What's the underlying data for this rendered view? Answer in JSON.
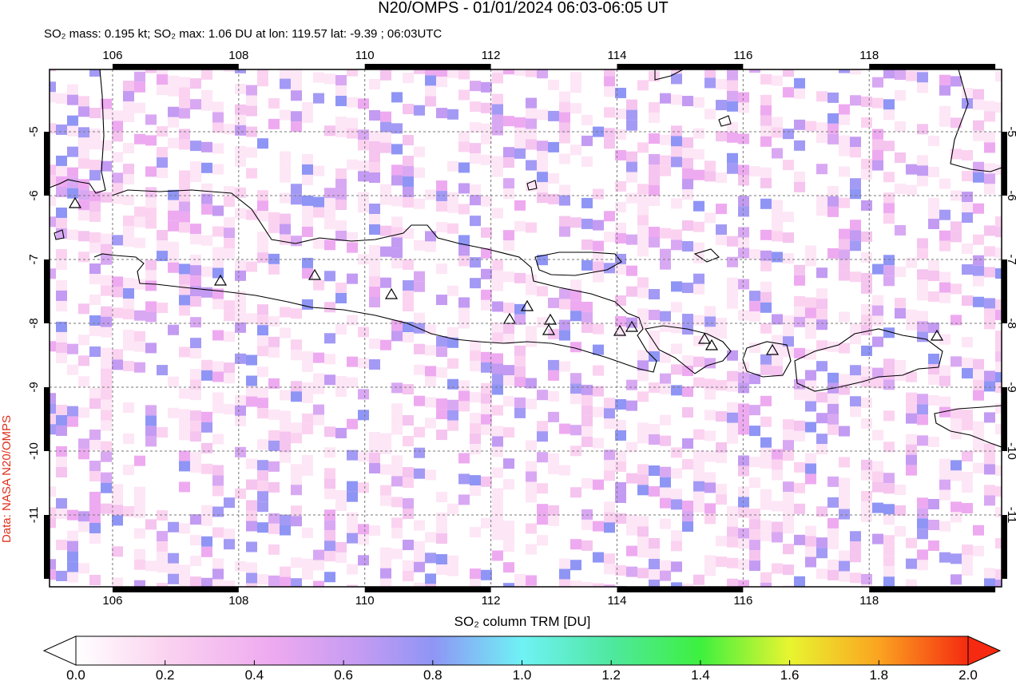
{
  "map": {
    "title": "N20/OMPS - 01/01/2024 06:03-06:05 UT",
    "subtitle": "SO₂ mass: 0.195 kt; SO₂ max: 1.06 DU at lon: 119.57 lat: -9.39 ; 06:03UTC",
    "credit": "Data: NASA N20/OMPS",
    "colorbar_label": "SO₂ column TRM [DU]",
    "lonlim": [
      105,
      120.1
    ],
    "latlim": [
      -4.025,
      -12.125
    ],
    "lon_ticks": [
      106,
      108,
      110,
      112,
      114,
      116,
      118
    ],
    "lat_ticks": [
      -5,
      -6,
      -7,
      -8,
      -9,
      -10,
      -11
    ],
    "colorbar_lim": [
      0,
      2
    ],
    "colorbar_ticks": [
      {
        "value": 0,
        "label": "0.0"
      },
      {
        "value": 0.2,
        "label": "0.2"
      },
      {
        "value": 0.4,
        "label": "0.4"
      },
      {
        "value": 0.6,
        "label": "0.6"
      },
      {
        "value": 0.8,
        "label": "0.8"
      },
      {
        "value": 1,
        "label": "1.0"
      },
      {
        "value": 1.2,
        "label": "1.2"
      },
      {
        "value": 1.4,
        "label": "1.4"
      },
      {
        "value": 1.6,
        "label": "1.6"
      },
      {
        "value": 1.8,
        "label": "1.8"
      },
      {
        "value": 2,
        "label": "2.0"
      }
    ]
  }
}
